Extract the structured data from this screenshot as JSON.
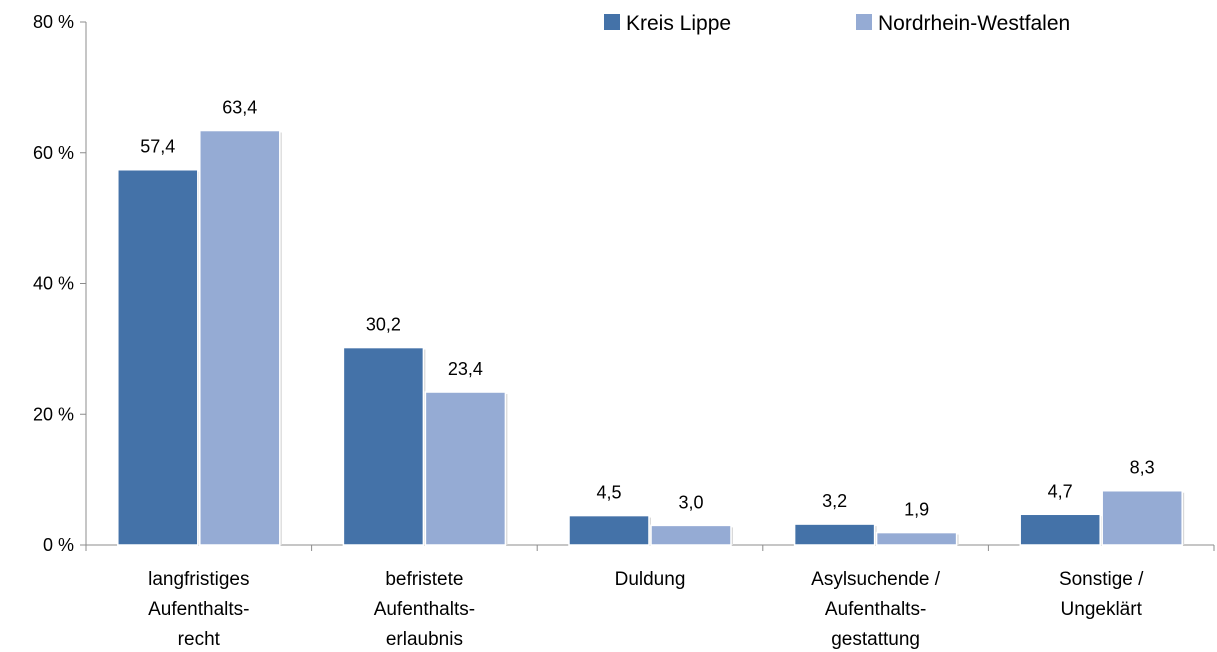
{
  "chart_data": {
    "type": "bar",
    "categories": [
      [
        "langfristiges",
        "Aufenthalts-",
        "recht"
      ],
      [
        "befristete",
        "Aufenthalts-",
        "erlaubnis"
      ],
      [
        "Duldung"
      ],
      [
        "Asylsuchende /",
        "Aufenthalts-",
        "gestattung"
      ],
      [
        "Sonstige /",
        "Ungeklärt"
      ]
    ],
    "series": [
      {
        "name": "Kreis Lippe",
        "color": "#4472a8",
        "values": [
          57.4,
          30.2,
          4.5,
          3.2,
          4.7
        ],
        "labels": [
          "57,4",
          "30,2",
          "4,5",
          "3,2",
          "4,7"
        ]
      },
      {
        "name": "Nordrhein-Westfalen",
        "color": "#95abd4",
        "values": [
          63.4,
          23.4,
          3.0,
          1.9,
          8.3
        ],
        "labels": [
          "63,4",
          "23,4",
          "3,0",
          "1,9",
          "8,3"
        ]
      }
    ],
    "ylim": [
      0,
      80
    ],
    "yticks": [
      0,
      20,
      40,
      60,
      80
    ],
    "ytick_labels": [
      "0 %",
      "20 %",
      "40 %",
      "60 %",
      "80 %"
    ],
    "grid": false,
    "legend_position": "top-right"
  }
}
